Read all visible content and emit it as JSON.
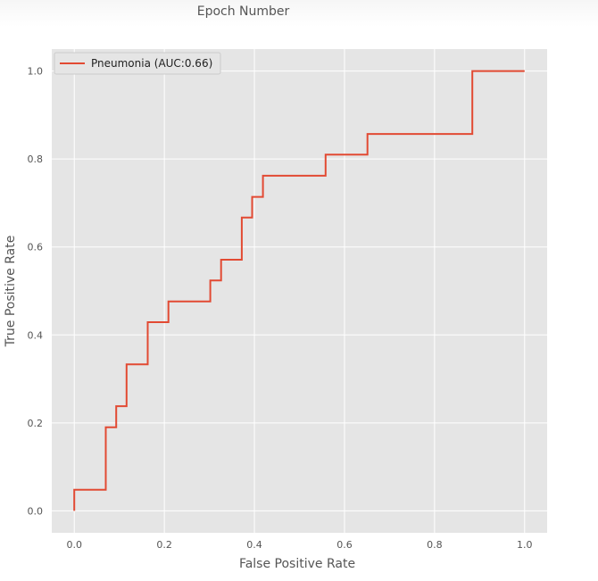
{
  "page": {
    "top_caption": "Epoch Number"
  },
  "chart_data": {
    "type": "line",
    "title": "",
    "xlabel": "False Positive Rate",
    "ylabel": "True Positive Rate",
    "xlim": [
      -0.05,
      1.05
    ],
    "ylim": [
      -0.05,
      1.05
    ],
    "xticks": [
      "0.0",
      "0.2",
      "0.4",
      "0.6",
      "0.8",
      "1.0"
    ],
    "yticks": [
      "0.0",
      "0.2",
      "0.4",
      "0.6",
      "0.8",
      "1.0"
    ],
    "grid": true,
    "legend_position": "top-left",
    "series": [
      {
        "name": "Pneumonia (AUC:0.66)",
        "color": "#e24a33",
        "step": true,
        "x": [
          0.0,
          0.0,
          0.07,
          0.07,
          0.093,
          0.093,
          0.116,
          0.116,
          0.163,
          0.163,
          0.209,
          0.209,
          0.302,
          0.302,
          0.326,
          0.326,
          0.372,
          0.372,
          0.395,
          0.395,
          0.419,
          0.419,
          0.558,
          0.558,
          0.651,
          0.651,
          0.884,
          0.884,
          1.0
        ],
        "y": [
          0.0,
          0.048,
          0.048,
          0.19,
          0.19,
          0.238,
          0.238,
          0.333,
          0.333,
          0.429,
          0.429,
          0.476,
          0.476,
          0.524,
          0.524,
          0.571,
          0.571,
          0.667,
          0.667,
          0.714,
          0.714,
          0.762,
          0.762,
          0.81,
          0.81,
          0.857,
          0.857,
          1.0,
          1.0
        ]
      }
    ]
  }
}
